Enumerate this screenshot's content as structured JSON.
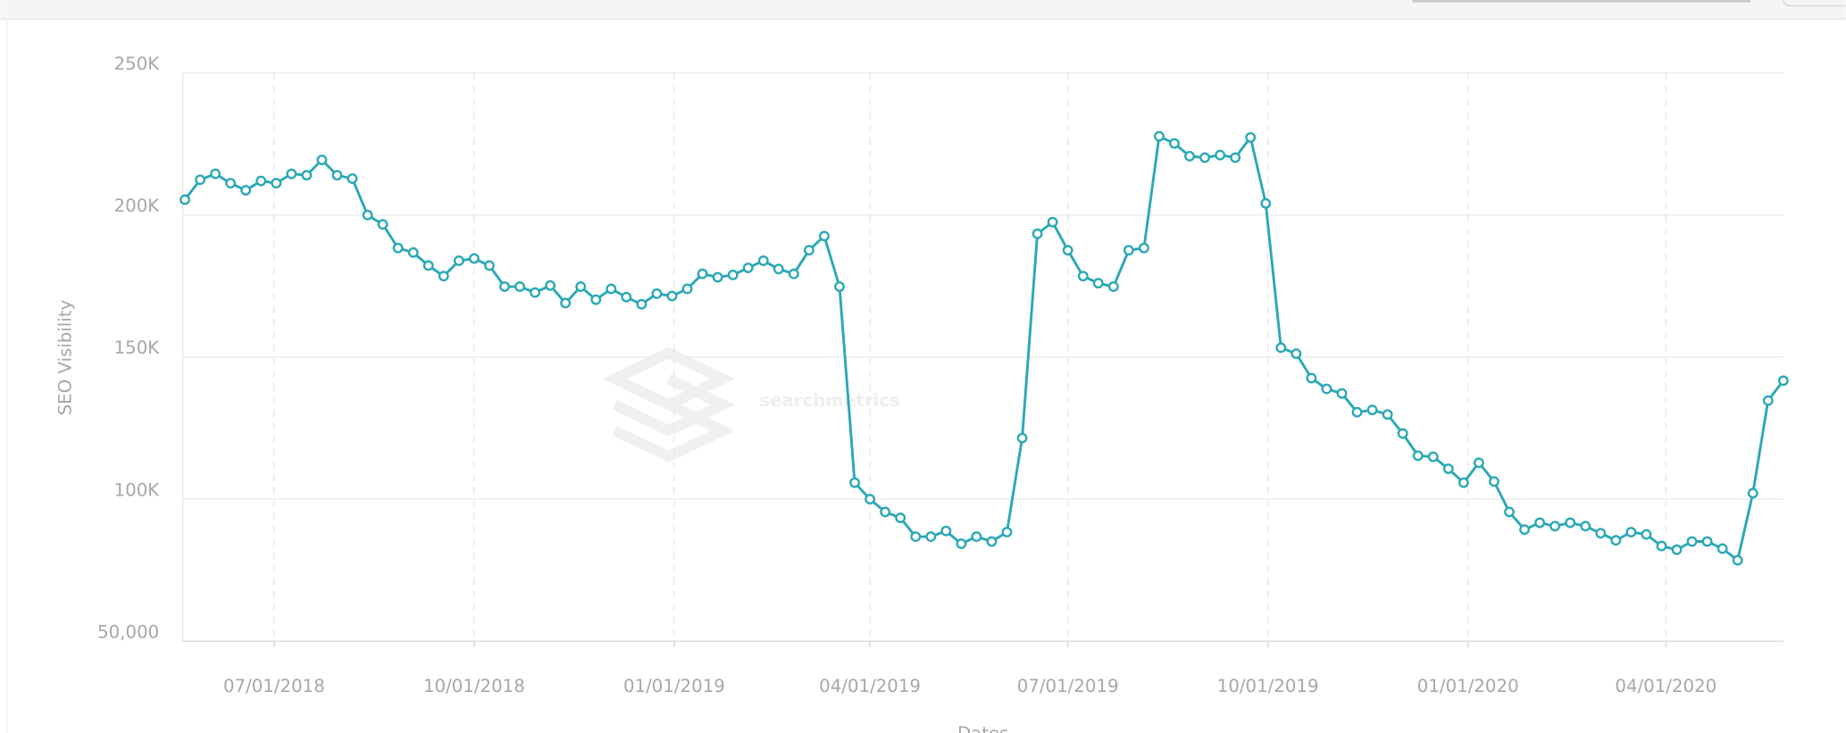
{
  "chart_data": {
    "type": "line",
    "y_label": "SEO Visibility",
    "x_label": "Dates",
    "watermark": "searchmetrics",
    "x": [
      "05/21/2018",
      "05/28/2018",
      "06/04/2018",
      "06/11/2018",
      "06/18/2018",
      "06/25/2018",
      "07/02/2018",
      "07/09/2018",
      "07/16/2018",
      "07/23/2018",
      "07/30/2018",
      "08/06/2018",
      "08/13/2018",
      "08/20/2018",
      "08/27/2018",
      "09/03/2018",
      "09/10/2018",
      "09/17/2018",
      "09/24/2018",
      "10/01/2018",
      "10/08/2018",
      "10/15/2018",
      "10/22/2018",
      "10/29/2018",
      "11/05/2018",
      "11/12/2018",
      "11/19/2018",
      "11/26/2018",
      "12/03/2018",
      "12/10/2018",
      "12/17/2018",
      "12/24/2018",
      "12/31/2018",
      "01/07/2019",
      "01/14/2019",
      "01/21/2019",
      "01/28/2019",
      "02/04/2019",
      "02/11/2019",
      "02/18/2019",
      "02/25/2019",
      "03/04/2019",
      "03/11/2019",
      "03/18/2019",
      "03/25/2019",
      "04/01/2019",
      "04/08/2019",
      "04/15/2019",
      "04/22/2019",
      "04/29/2019",
      "05/06/2019",
      "05/13/2019",
      "05/20/2019",
      "05/27/2019",
      "06/03/2019",
      "06/10/2019",
      "06/17/2019",
      "06/24/2019",
      "07/01/2019",
      "07/08/2019",
      "07/15/2019",
      "07/22/2019",
      "07/29/2019",
      "08/05/2019",
      "08/12/2019",
      "08/19/2019",
      "08/26/2019",
      "09/02/2019",
      "09/09/2019",
      "09/16/2019",
      "09/23/2019",
      "09/30/2019",
      "10/07/2019",
      "10/14/2019",
      "10/21/2019",
      "10/28/2019",
      "11/04/2019",
      "11/11/2019",
      "11/18/2019",
      "11/25/2019",
      "12/02/2019",
      "12/09/2019",
      "12/16/2019",
      "12/23/2019",
      "12/30/2019",
      "01/06/2020",
      "01/13/2020",
      "01/20/2020",
      "01/27/2020",
      "02/03/2020",
      "02/10/2020",
      "02/17/2020",
      "02/24/2020",
      "03/02/2020",
      "03/09/2020",
      "03/16/2020",
      "03/23/2020",
      "03/30/2020",
      "04/06/2020",
      "04/13/2020",
      "04/20/2020",
      "04/27/2020",
      "05/04/2020",
      "05/11/2020",
      "05/18/2020",
      "05/25/2020"
    ],
    "series": [
      {
        "name": "SEO Visibility",
        "color": "#2aa8b5",
        "values": [
          205400,
          212400,
          214500,
          211200,
          208700,
          212000,
          211200,
          214500,
          214000,
          219400,
          214000,
          212800,
          200000,
          196700,
          188400,
          186800,
          182200,
          178500,
          183900,
          184700,
          182200,
          174800,
          174800,
          172700,
          175200,
          169000,
          174800,
          170200,
          174000,
          171100,
          168600,
          172300,
          171500,
          174000,
          179300,
          178100,
          178900,
          181400,
          183900,
          181000,
          179300,
          187600,
          192600,
          174800,
          105800,
          100000,
          95500,
          93400,
          86800,
          86800,
          88800,
          84300,
          86800,
          85100,
          88400,
          121500,
          193400,
          197500,
          187600,
          178500,
          176000,
          174800,
          187600,
          188400,
          227700,
          225200,
          220700,
          220200,
          221100,
          220200,
          227300,
          204100,
          153300,
          151200,
          142600,
          138800,
          137200,
          130600,
          131400,
          129800,
          123100,
          115300,
          114900,
          110700,
          105800,
          112800,
          106200,
          95500,
          89300,
          91700,
          90500,
          91700,
          90500,
          88000,
          85500,
          88400,
          87600,
          83500,
          82200,
          85100,
          85100,
          82600,
          78500,
          102100,
          134700,
          141700
        ]
      }
    ],
    "xlim": [
      "05/20/2018",
      "05/25/2020"
    ],
    "xticks": [
      "07/01/2018",
      "10/01/2018",
      "01/01/2019",
      "04/01/2019",
      "07/01/2019",
      "10/01/2019",
      "01/01/2020",
      "04/01/2020"
    ],
    "ylim": [
      50000,
      250000
    ],
    "yticks": [
      {
        "value": 50000,
        "label": "50,000"
      },
      {
        "value": 100000,
        "label": "100K"
      },
      {
        "value": 150000,
        "label": "150K"
      },
      {
        "value": 200000,
        "label": "200K"
      },
      {
        "value": 250000,
        "label": "250K"
      }
    ],
    "grid": true
  }
}
